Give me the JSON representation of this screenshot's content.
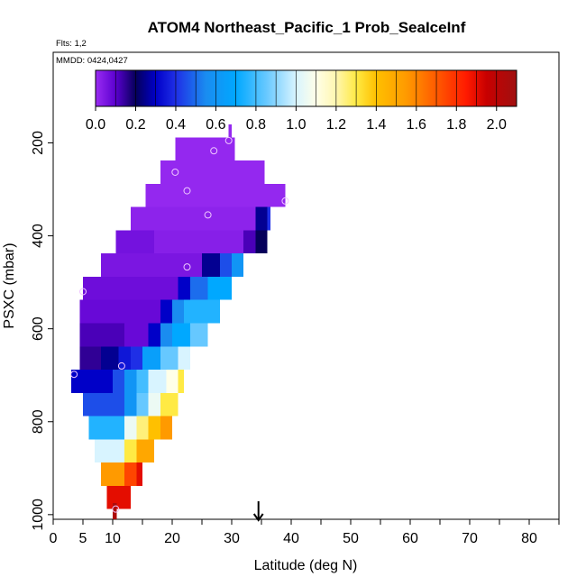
{
  "chart_data": {
    "type": "heatmap",
    "title": "ATOM4 Northeast_Pacific_1 Prob_SeaIceInf",
    "subtitle_flts": "Flts: 1,2",
    "subtitle_mmdd": "MMDD: 0424,0427",
    "xlabel": "Latitude (deg N)",
    "ylabel": "PSXC (mbar)",
    "xlim": [
      0,
      85
    ],
    "ylim": [
      1010,
      5
    ],
    "y_reversed": true,
    "x_ticks": [
      0,
      5,
      10,
      20,
      30,
      40,
      50,
      60,
      70,
      80
    ],
    "y_ticks": [
      200,
      400,
      600,
      800,
      1000
    ],
    "marker_latitude": 34.5,
    "colorbar": {
      "ticks": [
        0.0,
        0.2,
        0.4,
        0.6,
        0.8,
        1.0,
        1.2,
        1.4,
        1.6,
        1.8,
        2.0
      ],
      "tick_labels": [
        "0.0",
        "0.2",
        "0.4",
        "0.6",
        "0.8",
        "1.0",
        "1.2",
        "1.4",
        "1.6",
        "1.8",
        "2.0"
      ],
      "range": [
        0,
        2.1
      ]
    },
    "rows": [
      {
        "p": 185,
        "segments": [
          [
            29.5,
            30,
            0.01
          ]
        ]
      },
      {
        "p": 213,
        "segments": [
          [
            20.5,
            30.5,
            0.01
          ]
        ]
      },
      {
        "p": 263,
        "segments": [
          [
            18,
            35.5,
            0.01
          ]
        ]
      },
      {
        "p": 313,
        "segments": [
          [
            15.5,
            39,
            0.01
          ]
        ]
      },
      {
        "p": 363,
        "segments": [
          [
            13,
            34,
            0.02
          ],
          [
            34,
            36,
            0.25
          ],
          [
            36,
            36.5,
            0.4
          ]
        ]
      },
      {
        "p": 413,
        "segments": [
          [
            10.5,
            17,
            0.06
          ],
          [
            17,
            32,
            0.03
          ],
          [
            32,
            34,
            0.12
          ],
          [
            34,
            36,
            0.2
          ]
        ]
      },
      {
        "p": 463,
        "segments": [
          [
            8,
            25,
            0.05
          ],
          [
            25,
            28,
            0.25
          ],
          [
            28,
            30,
            0.45
          ],
          [
            30,
            32,
            0.6
          ]
        ]
      },
      {
        "p": 513,
        "segments": [
          [
            5,
            21,
            0.07
          ],
          [
            21,
            23,
            0.3
          ],
          [
            23,
            26,
            0.5
          ],
          [
            26,
            30,
            0.7
          ]
        ]
      },
      {
        "p": 563,
        "segments": [
          [
            4.5,
            18,
            0.08
          ],
          [
            18,
            20,
            0.3
          ],
          [
            20,
            22,
            0.55
          ],
          [
            22,
            28,
            0.75
          ]
        ]
      },
      {
        "p": 613,
        "segments": [
          [
            4.5,
            12,
            0.12
          ],
          [
            12,
            16,
            0.08
          ],
          [
            16,
            18,
            0.3
          ],
          [
            18,
            20,
            0.55
          ],
          [
            20,
            23,
            0.7
          ],
          [
            23,
            26,
            0.85
          ]
        ]
      },
      {
        "p": 663,
        "segments": [
          [
            4.5,
            8,
            0.15
          ],
          [
            8,
            11,
            0.25
          ],
          [
            11,
            13,
            0.35
          ],
          [
            13,
            15,
            0.4
          ],
          [
            15,
            18,
            0.65
          ],
          [
            18,
            21,
            0.85
          ],
          [
            21,
            23,
            1.0
          ]
        ]
      },
      {
        "p": 713,
        "segments": [
          [
            3,
            10,
            0.3
          ],
          [
            10,
            12,
            0.45
          ],
          [
            12,
            14,
            0.6
          ],
          [
            14,
            16,
            0.8
          ],
          [
            16,
            19,
            1.0
          ],
          [
            19,
            21,
            1.1
          ],
          [
            21,
            22,
            1.3
          ]
        ]
      },
      {
        "p": 763,
        "segments": [
          [
            5,
            12,
            0.45
          ],
          [
            12,
            14,
            0.6
          ],
          [
            14,
            16,
            0.85
          ],
          [
            16,
            18,
            1.05
          ],
          [
            18,
            21,
            1.3
          ]
        ]
      },
      {
        "p": 813,
        "segments": [
          [
            6,
            12,
            0.75
          ],
          [
            12,
            14,
            1.05
          ],
          [
            14,
            16,
            1.25
          ],
          [
            16,
            18,
            1.4
          ],
          [
            18,
            20,
            1.55
          ]
        ]
      },
      {
        "p": 863,
        "segments": [
          [
            7,
            12,
            1.0
          ],
          [
            12,
            14,
            1.3
          ],
          [
            14,
            17,
            1.5
          ]
        ]
      },
      {
        "p": 913,
        "segments": [
          [
            8,
            12,
            1.55
          ],
          [
            12,
            14,
            1.75
          ],
          [
            14,
            15,
            1.9
          ]
        ]
      },
      {
        "p": 963,
        "segments": [
          [
            9,
            13,
            1.9
          ]
        ]
      },
      {
        "p": 1000,
        "segments": [
          [
            10,
            10.7,
            2.05
          ]
        ]
      }
    ],
    "observations": [
      {
        "lat": 29.5,
        "p": 195
      },
      {
        "lat": 27,
        "p": 217
      },
      {
        "lat": 20.5,
        "p": 263
      },
      {
        "lat": 22.5,
        "p": 303
      },
      {
        "lat": 39,
        "p": 325
      },
      {
        "lat": 26,
        "p": 355
      },
      {
        "lat": 22.5,
        "p": 467
      },
      {
        "lat": 5,
        "p": 520
      },
      {
        "lat": 11.5,
        "p": 680
      },
      {
        "lat": 3.5,
        "p": 698
      },
      {
        "lat": 10.5,
        "p": 988
      }
    ]
  }
}
